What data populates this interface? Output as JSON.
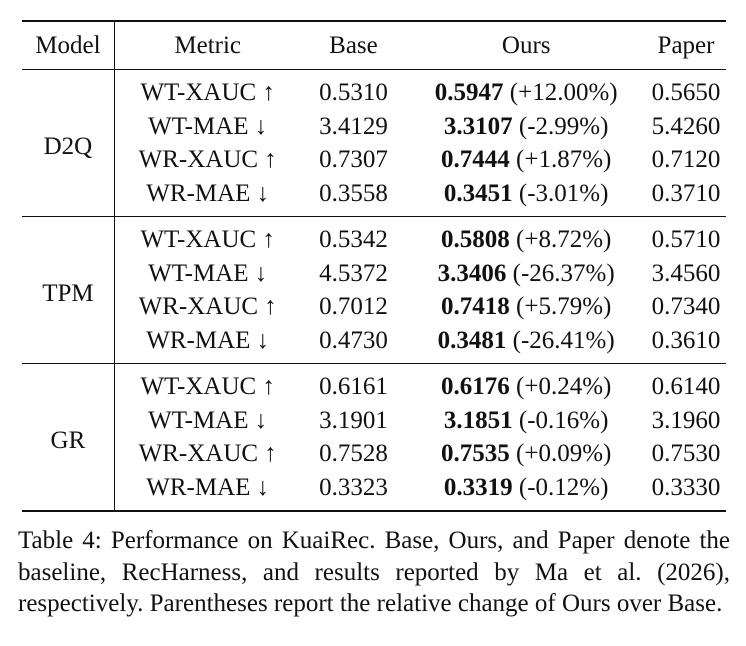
{
  "table": {
    "headers": {
      "model": "Model",
      "metric": "Metric",
      "base": "Base",
      "ours": "Ours",
      "paper": "Paper"
    },
    "groups": [
      {
        "model": "D2Q",
        "rows": [
          {
            "metric": "WT-XAUC ↑",
            "base": "0.5310",
            "ours_best": "0.5947",
            "ours_change": "(+12.00%)",
            "paper": "0.5650"
          },
          {
            "metric": "WT-MAE ↓",
            "base": "3.4129",
            "ours_best": "3.3107",
            "ours_change": "(-2.99%)",
            "paper": "5.4260"
          },
          {
            "metric": "WR-XAUC ↑",
            "base": "0.7307",
            "ours_best": "0.7444",
            "ours_change": "(+1.87%)",
            "paper": "0.7120"
          },
          {
            "metric": "WR-MAE ↓",
            "base": "0.3558",
            "ours_best": "0.3451",
            "ours_change": "(-3.01%)",
            "paper": "0.3710"
          }
        ]
      },
      {
        "model": "TPM",
        "rows": [
          {
            "metric": "WT-XAUC ↑",
            "base": "0.5342",
            "ours_best": "0.5808",
            "ours_change": "(+8.72%)",
            "paper": "0.5710"
          },
          {
            "metric": "WT-MAE ↓",
            "base": "4.5372",
            "ours_best": "3.3406",
            "ours_change": "(-26.37%)",
            "paper": "3.4560"
          },
          {
            "metric": "WR-XAUC ↑",
            "base": "0.7012",
            "ours_best": "0.7418",
            "ours_change": "(+5.79%)",
            "paper": "0.7340"
          },
          {
            "metric": "WR-MAE ↓",
            "base": "0.4730",
            "ours_best": "0.3481",
            "ours_change": "(-26.41%)",
            "paper": "0.3610"
          }
        ]
      },
      {
        "model": "GR",
        "rows": [
          {
            "metric": "WT-XAUC ↑",
            "base": "0.6161",
            "ours_best": "0.6176",
            "ours_change": "(+0.24%)",
            "paper": "0.6140"
          },
          {
            "metric": "WT-MAE ↓",
            "base": "3.1901",
            "ours_best": "3.1851",
            "ours_change": "(-0.16%)",
            "paper": "3.1960"
          },
          {
            "metric": "WR-XAUC ↑",
            "base": "0.7528",
            "ours_best": "0.7535",
            "ours_change": "(+0.09%)",
            "paper": "0.7530"
          },
          {
            "metric": "WR-MAE ↓",
            "base": "0.3323",
            "ours_best": "0.3319",
            "ours_change": "(-0.12%)",
            "paper": "0.3330"
          }
        ]
      }
    ]
  },
  "caption": "Table 4: Performance on KuaiRec. Base, Ours, and Paper denote the baseline, RecHarness, and results reported by Ma et al. (2026), respectively. Parentheses report the relative change of Ours over Base."
}
